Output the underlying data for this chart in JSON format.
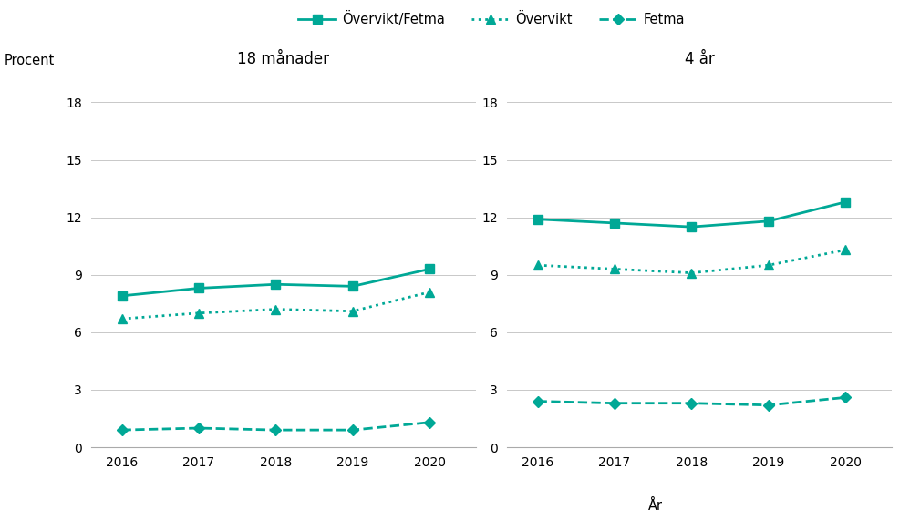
{
  "years": [
    2016,
    2017,
    2018,
    2019,
    2020
  ],
  "left_title": "18 månader",
  "right_title": "4 år",
  "ylabel": "Procent",
  "xlabel": "År",
  "ylim": [
    0,
    19
  ],
  "yticks": [
    0,
    3,
    6,
    9,
    12,
    15,
    18
  ],
  "left": {
    "overvikt_fetma": [
      7.9,
      8.3,
      8.5,
      8.4,
      9.3
    ],
    "overvikt": [
      6.7,
      7.0,
      7.2,
      7.1,
      8.1
    ],
    "fetma": [
      0.9,
      1.0,
      0.9,
      0.9,
      1.3
    ]
  },
  "right": {
    "overvikt_fetma": [
      11.9,
      11.7,
      11.5,
      11.8,
      12.8
    ],
    "overvikt": [
      9.5,
      9.3,
      9.1,
      9.5,
      10.3
    ],
    "fetma": [
      2.4,
      2.3,
      2.3,
      2.2,
      2.6
    ]
  },
  "color": "#00A896",
  "legend_labels": [
    "Övervikt/Fetma",
    "Övervikt",
    "Fetma"
  ],
  "grid_color": "#c8c8c8",
  "background_color": "#ffffff",
  "title_fontsize": 12,
  "label_fontsize": 10.5,
  "tick_fontsize": 10,
  "legend_fontsize": 10.5
}
